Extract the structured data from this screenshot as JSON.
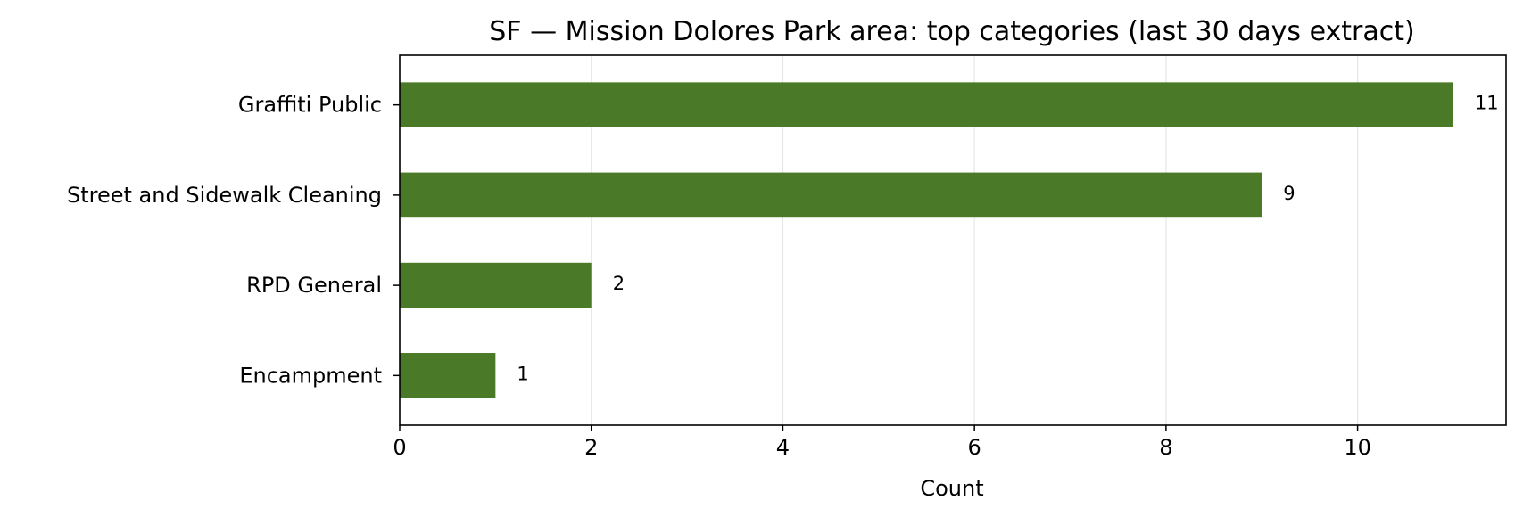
{
  "chart_data": {
    "type": "bar",
    "orientation": "horizontal",
    "title": "SF — Mission Dolores Park area: top categories (last 30 days extract)",
    "xlabel": "Count",
    "ylabel": "",
    "categories": [
      "Graffiti Public",
      "Street and Sidewalk Cleaning",
      "RPD General",
      "Encampment"
    ],
    "values": [
      11,
      9,
      2,
      1
    ],
    "xlim": [
      0,
      11.55
    ],
    "xticks": [
      0,
      2,
      4,
      6,
      8,
      10
    ],
    "grid": "vertical",
    "bar_color": "#4a7a28",
    "grid_color": "#e6e6e6",
    "data_labels": true
  }
}
